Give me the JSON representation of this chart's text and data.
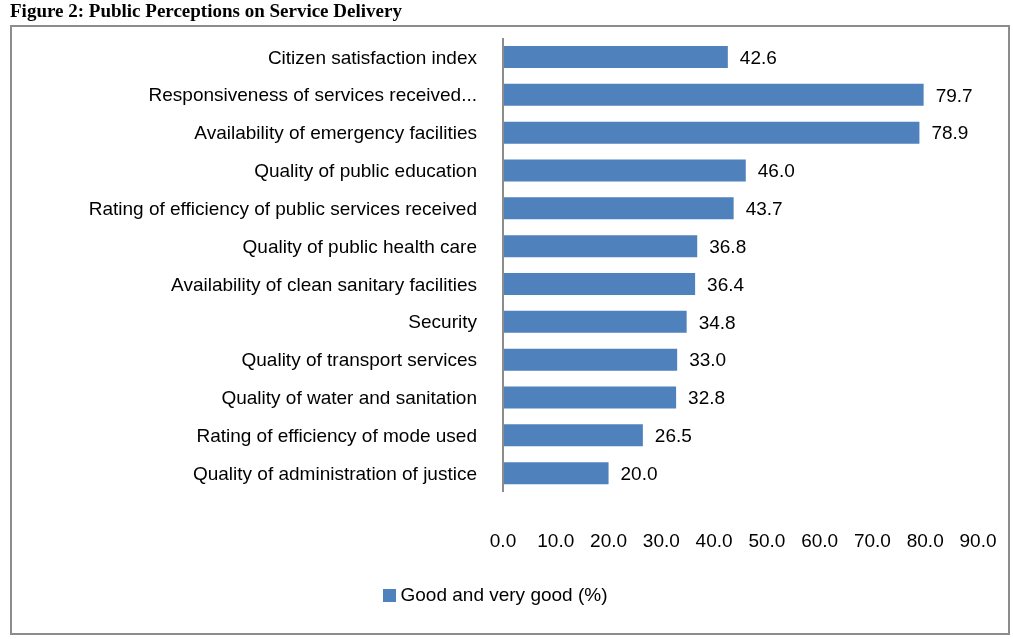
{
  "chart_data": {
    "type": "bar",
    "orientation": "horizontal",
    "title": "Figure 2: Public Perceptions on Service Delivery",
    "categories": [
      "Citizen satisfaction index",
      "Responsiveness of services received...",
      "Availability of emergency facilities",
      "Quality of public education",
      "Rating of efficiency of public services received",
      "Quality of public health care",
      "Availability of clean sanitary facilities",
      "Security",
      "Quality of transport services",
      "Quality of water and sanitation",
      "Rating of efficiency of mode used",
      "Quality of administration of justice"
    ],
    "series": [
      {
        "name": "Good and very good (%)",
        "color": "#4f81bd",
        "values": [
          42.6,
          79.7,
          78.9,
          46.0,
          43.7,
          36.8,
          36.4,
          34.8,
          33.0,
          32.8,
          26.5,
          20.0
        ],
        "value_labels": [
          "42.6",
          "79.7",
          "78.9",
          "46.0",
          "43.7",
          "36.8",
          "36.4",
          "34.8",
          "33.0",
          "32.8",
          "26.5",
          "20.0"
        ]
      }
    ],
    "xlim": [
      0,
      90
    ],
    "xticks": [
      {
        "value": 0,
        "label": "0.0"
      },
      {
        "value": 10,
        "label": "10.0"
      },
      {
        "value": 20,
        "label": "20.0"
      },
      {
        "value": 30,
        "label": "30.0"
      },
      {
        "value": 40,
        "label": "40.0"
      },
      {
        "value": 50,
        "label": "50.0"
      },
      {
        "value": 60,
        "label": "60.0"
      },
      {
        "value": 70,
        "label": "70.0"
      },
      {
        "value": 80,
        "label": "80.0"
      },
      {
        "value": 90,
        "label": "90.0"
      }
    ],
    "legend": "bottom"
  }
}
